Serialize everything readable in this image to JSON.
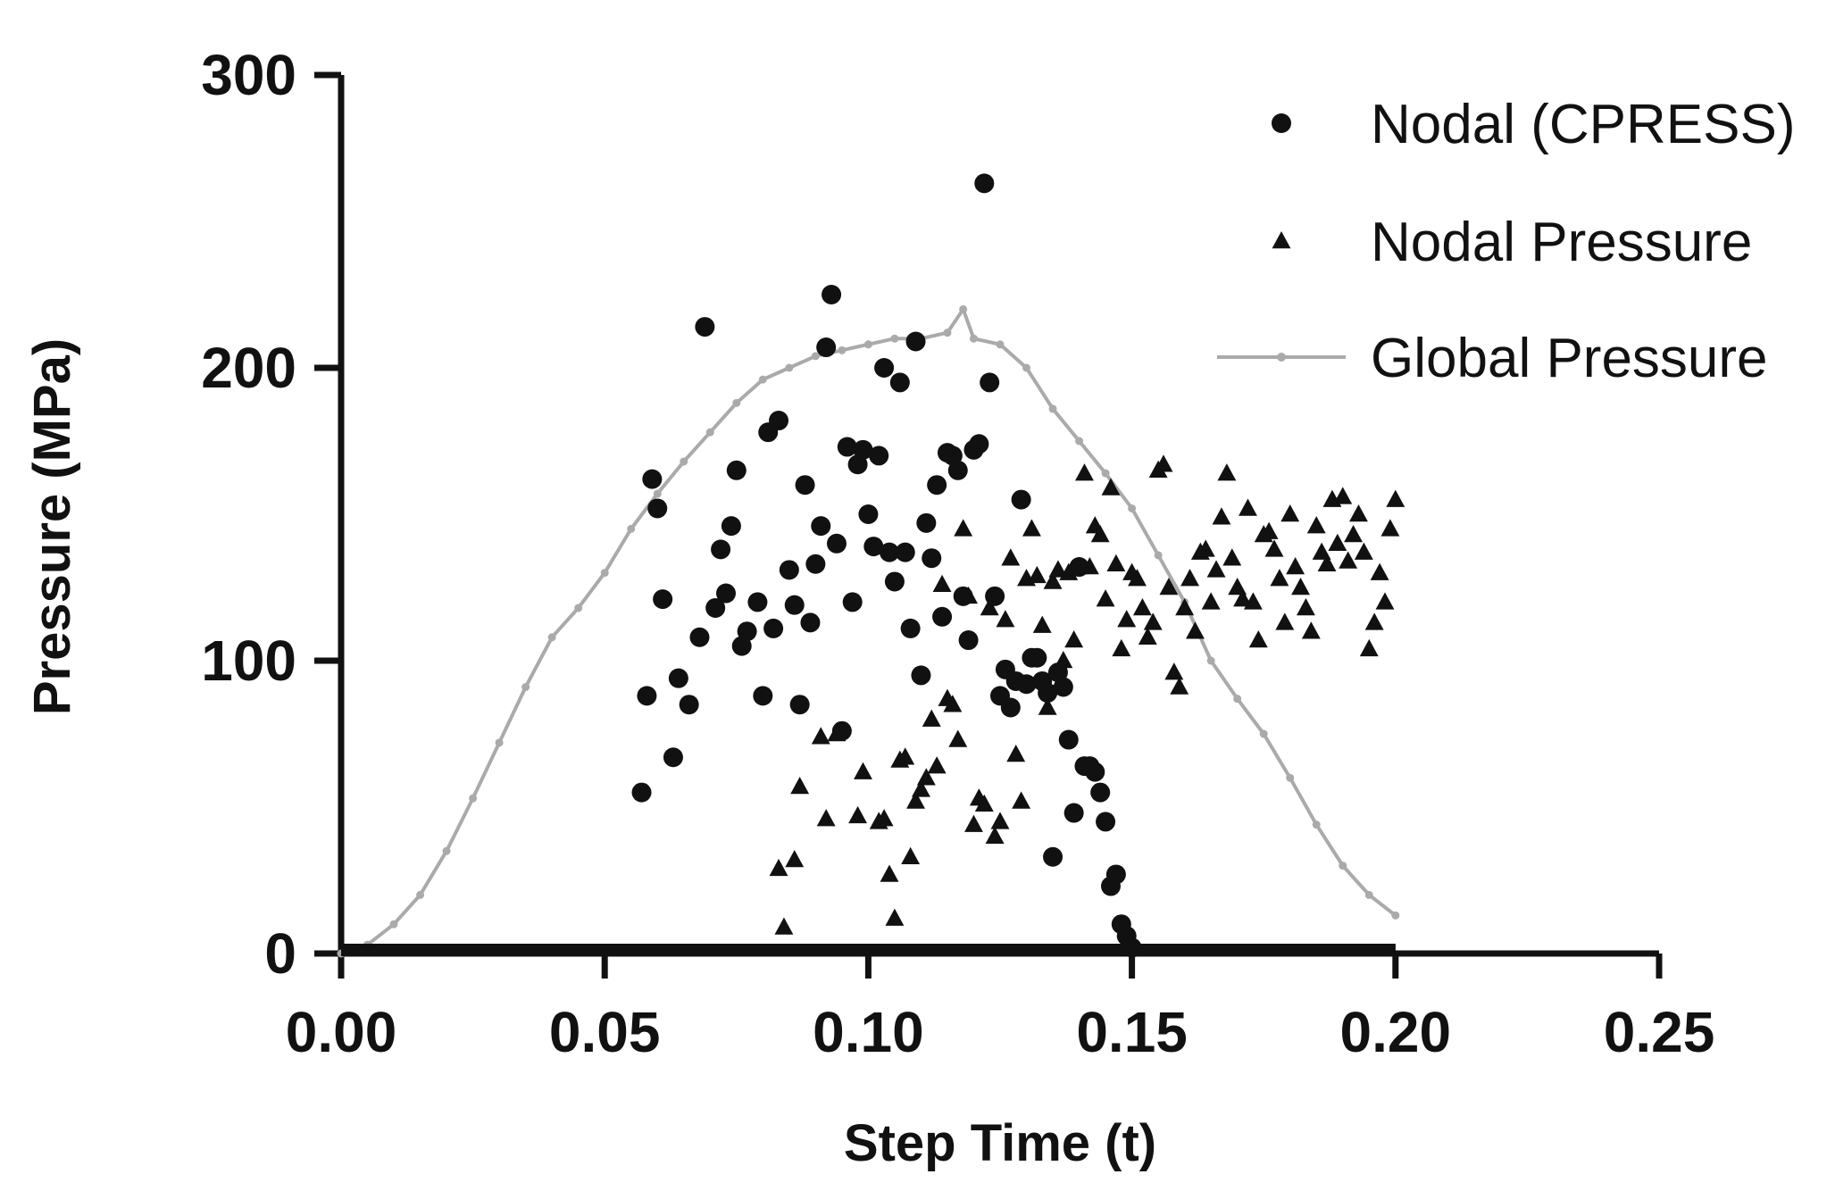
{
  "chart_data": {
    "type": "scatter",
    "xlabel": "Step Time (t)",
    "ylabel": "Pressure (MPa)",
    "xlim": [
      0,
      0.25
    ],
    "ylim": [
      0,
      300
    ],
    "x_ticks": [
      "0.00",
      "0.05",
      "0.10",
      "0.15",
      "0.20",
      "0.25"
    ],
    "y_ticks": [
      "0",
      "100",
      "200",
      "300"
    ],
    "legend_position": "top-right",
    "grid": false,
    "series": [
      {
        "name": "Nodal (CPRESS)",
        "marker": "circle",
        "color": "#111111",
        "points": [
          [
            0.057,
            55
          ],
          [
            0.058,
            88
          ],
          [
            0.059,
            162
          ],
          [
            0.06,
            152
          ],
          [
            0.061,
            121
          ],
          [
            0.063,
            67
          ],
          [
            0.064,
            94
          ],
          [
            0.066,
            85
          ],
          [
            0.068,
            108
          ],
          [
            0.069,
            214
          ],
          [
            0.071,
            118
          ],
          [
            0.072,
            138
          ],
          [
            0.073,
            123
          ],
          [
            0.074,
            146
          ],
          [
            0.075,
            165
          ],
          [
            0.076,
            105
          ],
          [
            0.077,
            110
          ],
          [
            0.079,
            120
          ],
          [
            0.08,
            88
          ],
          [
            0.081,
            178
          ],
          [
            0.082,
            111
          ],
          [
            0.083,
            182
          ],
          [
            0.085,
            131
          ],
          [
            0.086,
            119
          ],
          [
            0.087,
            85
          ],
          [
            0.088,
            160
          ],
          [
            0.089,
            113
          ],
          [
            0.09,
            133
          ],
          [
            0.091,
            146
          ],
          [
            0.092,
            207
          ],
          [
            0.093,
            225
          ],
          [
            0.094,
            140
          ],
          [
            0.095,
            76
          ],
          [
            0.096,
            173
          ],
          [
            0.097,
            120
          ],
          [
            0.098,
            167
          ],
          [
            0.099,
            172
          ],
          [
            0.1,
            150
          ],
          [
            0.101,
            139
          ],
          [
            0.102,
            170
          ],
          [
            0.103,
            200
          ],
          [
            0.104,
            137
          ],
          [
            0.105,
            127
          ],
          [
            0.106,
            195
          ],
          [
            0.107,
            137
          ],
          [
            0.108,
            111
          ],
          [
            0.109,
            209
          ],
          [
            0.11,
            95
          ],
          [
            0.111,
            147
          ],
          [
            0.112,
            135
          ],
          [
            0.113,
            160
          ],
          [
            0.114,
            115
          ],
          [
            0.115,
            171
          ],
          [
            0.116,
            170
          ],
          [
            0.117,
            165
          ],
          [
            0.118,
            122
          ],
          [
            0.119,
            107
          ],
          [
            0.12,
            172
          ],
          [
            0.121,
            174
          ],
          [
            0.122,
            263
          ],
          [
            0.123,
            195
          ],
          [
            0.124,
            122
          ],
          [
            0.125,
            88
          ],
          [
            0.126,
            97
          ],
          [
            0.127,
            84
          ],
          [
            0.128,
            93
          ],
          [
            0.129,
            155
          ],
          [
            0.13,
            92
          ],
          [
            0.131,
            101
          ],
          [
            0.132,
            101
          ],
          [
            0.133,
            93
          ],
          [
            0.134,
            89
          ],
          [
            0.135,
            33
          ],
          [
            0.136,
            96
          ],
          [
            0.137,
            91
          ],
          [
            0.138,
            73
          ],
          [
            0.139,
            48
          ],
          [
            0.14,
            132
          ],
          [
            0.141,
            64
          ],
          [
            0.142,
            64
          ],
          [
            0.143,
            62
          ],
          [
            0.144,
            55
          ],
          [
            0.145,
            45
          ],
          [
            0.146,
            23
          ],
          [
            0.147,
            27
          ],
          [
            0.148,
            10
          ],
          [
            0.149,
            6
          ],
          [
            0.15,
            2
          ]
        ],
        "baseline": {
          "x_start": 0.0,
          "x_end": 0.2,
          "y": 0
        }
      },
      {
        "name": "Nodal Pressure",
        "marker": "triangle",
        "color": "#111111",
        "points": [
          [
            0.083,
            29
          ],
          [
            0.084,
            9
          ],
          [
            0.086,
            32
          ],
          [
            0.087,
            57
          ],
          [
            0.091,
            74
          ],
          [
            0.092,
            46
          ],
          [
            0.094,
            75
          ],
          [
            0.098,
            47
          ],
          [
            0.099,
            62
          ],
          [
            0.102,
            45
          ],
          [
            0.103,
            46
          ],
          [
            0.104,
            27
          ],
          [
            0.105,
            12
          ],
          [
            0.106,
            66
          ],
          [
            0.107,
            67
          ],
          [
            0.108,
            33
          ],
          [
            0.109,
            52
          ],
          [
            0.11,
            56
          ],
          [
            0.111,
            60
          ],
          [
            0.112,
            80
          ],
          [
            0.113,
            64
          ],
          [
            0.114,
            126
          ],
          [
            0.115,
            87
          ],
          [
            0.116,
            85
          ],
          [
            0.117,
            73
          ],
          [
            0.118,
            145
          ],
          [
            0.119,
            122
          ],
          [
            0.12,
            44
          ],
          [
            0.121,
            53
          ],
          [
            0.122,
            51
          ],
          [
            0.123,
            118
          ],
          [
            0.124,
            40
          ],
          [
            0.125,
            45
          ],
          [
            0.126,
            114
          ],
          [
            0.127,
            135
          ],
          [
            0.128,
            68
          ],
          [
            0.129,
            52
          ],
          [
            0.13,
            128
          ],
          [
            0.131,
            145
          ],
          [
            0.132,
            129
          ],
          [
            0.133,
            112
          ],
          [
            0.134,
            84
          ],
          [
            0.135,
            127
          ],
          [
            0.136,
            131
          ],
          [
            0.137,
            100
          ],
          [
            0.138,
            130
          ],
          [
            0.139,
            107
          ],
          [
            0.14,
            132
          ],
          [
            0.141,
            164
          ],
          [
            0.142,
            132
          ],
          [
            0.143,
            146
          ],
          [
            0.144,
            143
          ],
          [
            0.145,
            121
          ],
          [
            0.146,
            159
          ],
          [
            0.147,
            133
          ],
          [
            0.148,
            104
          ],
          [
            0.149,
            114
          ],
          [
            0.15,
            130
          ],
          [
            0.151,
            128
          ],
          [
            0.152,
            118
          ],
          [
            0.153,
            108
          ],
          [
            0.154,
            113
          ],
          [
            0.155,
            165
          ],
          [
            0.156,
            167
          ],
          [
            0.157,
            125
          ],
          [
            0.158,
            96
          ],
          [
            0.159,
            91
          ],
          [
            0.16,
            118
          ],
          [
            0.161,
            128
          ],
          [
            0.162,
            110
          ],
          [
            0.163,
            137
          ],
          [
            0.164,
            138
          ],
          [
            0.165,
            120
          ],
          [
            0.166,
            131
          ],
          [
            0.167,
            149
          ],
          [
            0.168,
            164
          ],
          [
            0.169,
            135
          ],
          [
            0.17,
            125
          ],
          [
            0.171,
            121
          ],
          [
            0.172,
            152
          ],
          [
            0.173,
            120
          ],
          [
            0.174,
            107
          ],
          [
            0.175,
            143
          ],
          [
            0.176,
            144
          ],
          [
            0.177,
            138
          ],
          [
            0.178,
            128
          ],
          [
            0.179,
            113
          ],
          [
            0.18,
            150
          ],
          [
            0.181,
            132
          ],
          [
            0.182,
            125
          ],
          [
            0.183,
            118
          ],
          [
            0.184,
            110
          ],
          [
            0.185,
            146
          ],
          [
            0.186,
            137
          ],
          [
            0.187,
            133
          ],
          [
            0.188,
            155
          ],
          [
            0.189,
            140
          ],
          [
            0.19,
            156
          ],
          [
            0.191,
            134
          ],
          [
            0.192,
            143
          ],
          [
            0.193,
            150
          ],
          [
            0.194,
            137
          ],
          [
            0.195,
            104
          ],
          [
            0.196,
            113
          ],
          [
            0.197,
            130
          ],
          [
            0.198,
            120
          ],
          [
            0.199,
            145
          ],
          [
            0.2,
            155
          ]
        ],
        "baseline": {
          "x_start": 0.055,
          "x_end": 0.2,
          "y": 0
        }
      },
      {
        "name": "Global Pressure",
        "marker": "line-small-dot",
        "color": "#aaaaaa",
        "x": [
          0.0,
          0.005,
          0.01,
          0.015,
          0.02,
          0.025,
          0.03,
          0.035,
          0.04,
          0.045,
          0.05,
          0.055,
          0.06,
          0.065,
          0.07,
          0.075,
          0.08,
          0.085,
          0.09,
          0.095,
          0.1,
          0.105,
          0.11,
          0.115,
          0.118,
          0.12,
          0.125,
          0.13,
          0.135,
          0.14,
          0.145,
          0.15,
          0.155,
          0.16,
          0.165,
          0.17,
          0.175,
          0.18,
          0.185,
          0.19,
          0.195,
          0.2
        ],
        "y": [
          0,
          3,
          10,
          20,
          35,
          53,
          72,
          91,
          108,
          118,
          130,
          145,
          157,
          168,
          178,
          188,
          196,
          200,
          204,
          206,
          208,
          210,
          210,
          212,
          220,
          210,
          208,
          200,
          186,
          175,
          164,
          152,
          136,
          120,
          100,
          87,
          75,
          60,
          44,
          30,
          20,
          13
        ]
      }
    ]
  }
}
